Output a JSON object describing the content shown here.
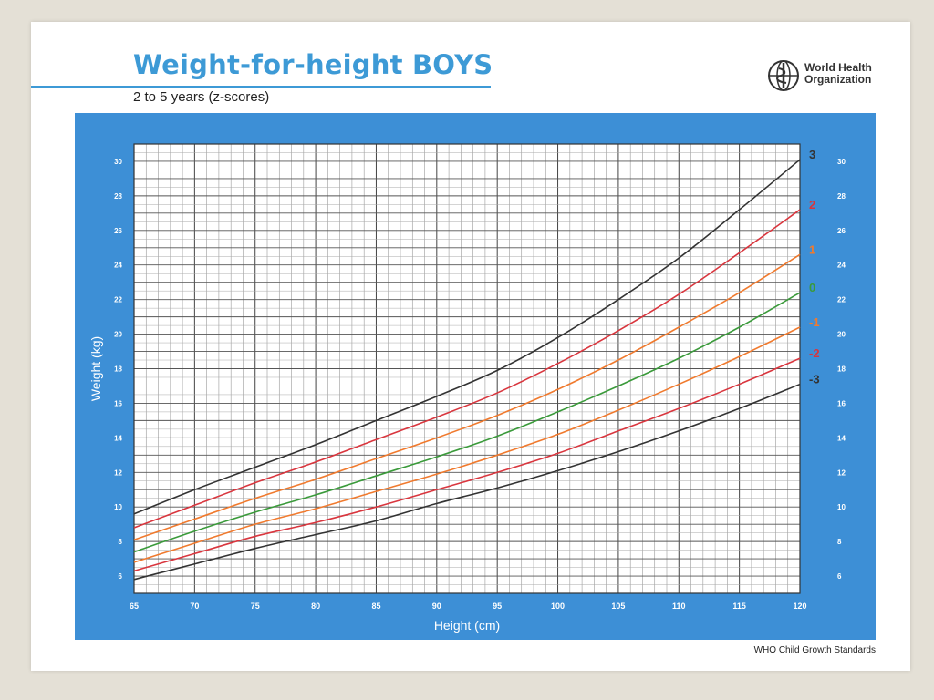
{
  "header": {
    "title": "Weight-for-height BOYS",
    "subtitle": "2 to 5 years (z-scores)",
    "org_line1": "World Health",
    "org_line2": "Organization",
    "logo_icon": "who-emblem-icon"
  },
  "footer": {
    "text": "WHO Child Growth Standards"
  },
  "colors": {
    "frame_blue": "#3d8fd6",
    "title_blue": "#3d9ad6",
    "z3": "#333333",
    "z2": "#d9363e",
    "z1": "#f07a2e",
    "z0": "#3a9a3a"
  },
  "chart_data": {
    "type": "line",
    "title": "",
    "xlabel": "Height (cm)",
    "ylabel": "Weight (kg)",
    "xlim": [
      65,
      120
    ],
    "ylim": [
      5,
      31
    ],
    "x_ticks": [
      65,
      70,
      75,
      80,
      85,
      90,
      95,
      100,
      105,
      110,
      115,
      120
    ],
    "y_ticks": [
      6,
      8,
      10,
      12,
      14,
      16,
      18,
      20,
      22,
      24,
      26,
      28,
      30
    ],
    "grid": true,
    "legend": "right-end line labels",
    "x": [
      65,
      70,
      75,
      80,
      85,
      90,
      95,
      100,
      105,
      110,
      115,
      120
    ],
    "series": [
      {
        "name": "3",
        "color": "#333333",
        "values": [
          9.6,
          11.0,
          12.3,
          13.6,
          15.0,
          16.4,
          17.9,
          19.8,
          22.0,
          24.4,
          27.2,
          30.1
        ]
      },
      {
        "name": "2",
        "color": "#d9363e",
        "values": [
          8.8,
          10.1,
          11.4,
          12.6,
          13.9,
          15.2,
          16.6,
          18.3,
          20.2,
          22.3,
          24.7,
          27.2
        ]
      },
      {
        "name": "1",
        "color": "#f07a2e",
        "values": [
          8.1,
          9.3,
          10.5,
          11.6,
          12.8,
          14.0,
          15.3,
          16.8,
          18.5,
          20.4,
          22.4,
          24.6
        ]
      },
      {
        "name": "0",
        "color": "#3a9a3a",
        "values": [
          7.4,
          8.6,
          9.7,
          10.7,
          11.8,
          12.9,
          14.1,
          15.5,
          17.0,
          18.6,
          20.4,
          22.4
        ]
      },
      {
        "name": "-1",
        "color": "#f07a2e",
        "values": [
          6.8,
          7.9,
          9.0,
          9.9,
          10.9,
          11.9,
          13.0,
          14.2,
          15.6,
          17.1,
          18.7,
          20.4
        ]
      },
      {
        "name": "-2",
        "color": "#d9363e",
        "values": [
          6.3,
          7.3,
          8.3,
          9.1,
          10.0,
          11.0,
          12.0,
          13.1,
          14.4,
          15.7,
          17.1,
          18.6
        ]
      },
      {
        "name": "-3",
        "color": "#333333",
        "values": [
          5.8,
          6.7,
          7.6,
          8.4,
          9.2,
          10.2,
          11.1,
          12.1,
          13.2,
          14.4,
          15.7,
          17.1
        ]
      }
    ]
  }
}
